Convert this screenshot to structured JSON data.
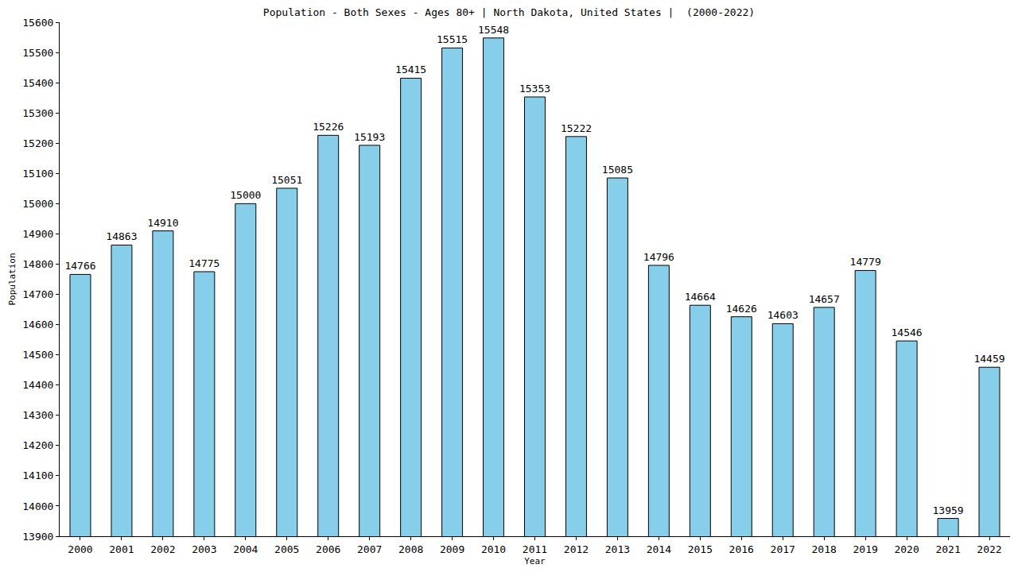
{
  "chart_data": {
    "type": "bar",
    "title": "Population - Both Sexes - Ages 80+ | North Dakota, United States |  (2000-2022)",
    "x_label": "Year",
    "y_label": "Population",
    "categories": [
      "2000",
      "2001",
      "2002",
      "2003",
      "2004",
      "2005",
      "2006",
      "2007",
      "2008",
      "2009",
      "2010",
      "2011",
      "2012",
      "2013",
      "2014",
      "2015",
      "2016",
      "2017",
      "2018",
      "2019",
      "2020",
      "2021",
      "2022"
    ],
    "values": [
      14766,
      14863,
      14910,
      14775,
      15000,
      15051,
      15226,
      15193,
      15415,
      15515,
      15548,
      15353,
      15222,
      15085,
      14796,
      14664,
      14626,
      14603,
      14657,
      14779,
      14546,
      13959,
      14459
    ],
    "color": "#87ceeb",
    "ylim": [
      13900,
      15600
    ],
    "yticks": [
      13900,
      14000,
      14100,
      14200,
      14300,
      14400,
      14500,
      14600,
      14700,
      14800,
      14900,
      15000,
      15100,
      15200,
      15300,
      15400,
      15500,
      15600
    ],
    "grid": false,
    "data_labels": true
  }
}
